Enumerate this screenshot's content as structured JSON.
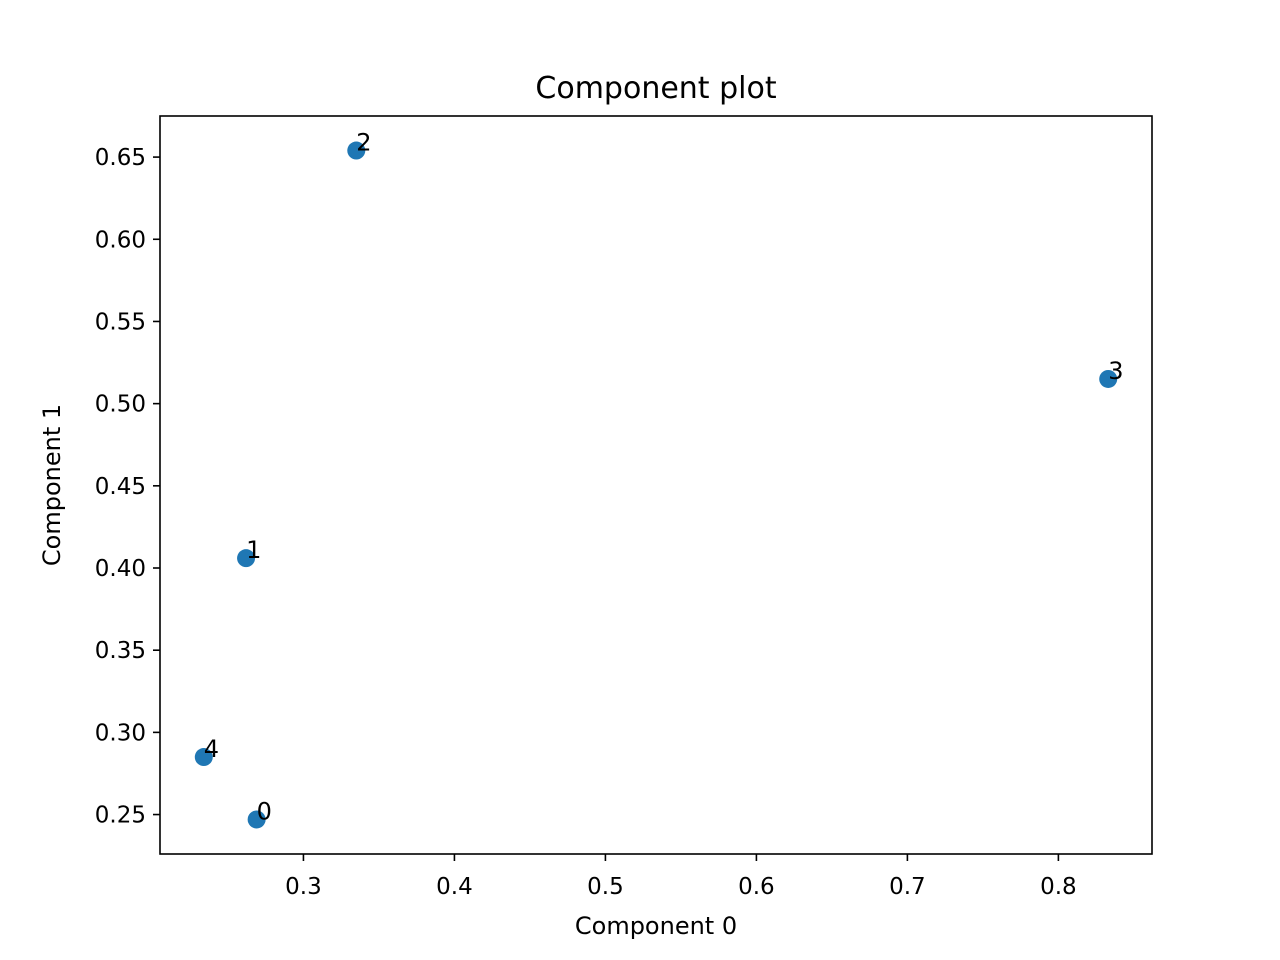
{
  "chart_data": {
    "type": "scatter",
    "title": "Component plot",
    "xlabel": "Component 0",
    "ylabel": "Component 1",
    "xlim": [
      0.205,
      0.862
    ],
    "ylim": [
      0.226,
      0.675
    ],
    "xticks": [
      0.3,
      0.4,
      0.5,
      0.6,
      0.7,
      0.8
    ],
    "xtick_labels": [
      "0.3",
      "0.4",
      "0.5",
      "0.6",
      "0.7",
      "0.8"
    ],
    "yticks": [
      0.25,
      0.3,
      0.35,
      0.4,
      0.45,
      0.5,
      0.55,
      0.6,
      0.65
    ],
    "ytick_labels": [
      "0.25",
      "0.30",
      "0.35",
      "0.40",
      "0.45",
      "0.50",
      "0.55",
      "0.60",
      "0.65"
    ],
    "grid": false,
    "points": [
      {
        "label": "0",
        "x": 0.269,
        "y": 0.247
      },
      {
        "label": "1",
        "x": 0.262,
        "y": 0.406
      },
      {
        "label": "2",
        "x": 0.335,
        "y": 0.654
      },
      {
        "label": "3",
        "x": 0.833,
        "y": 0.515
      },
      {
        "label": "4",
        "x": 0.234,
        "y": 0.285
      }
    ],
    "marker_color": "#1f77b4"
  }
}
